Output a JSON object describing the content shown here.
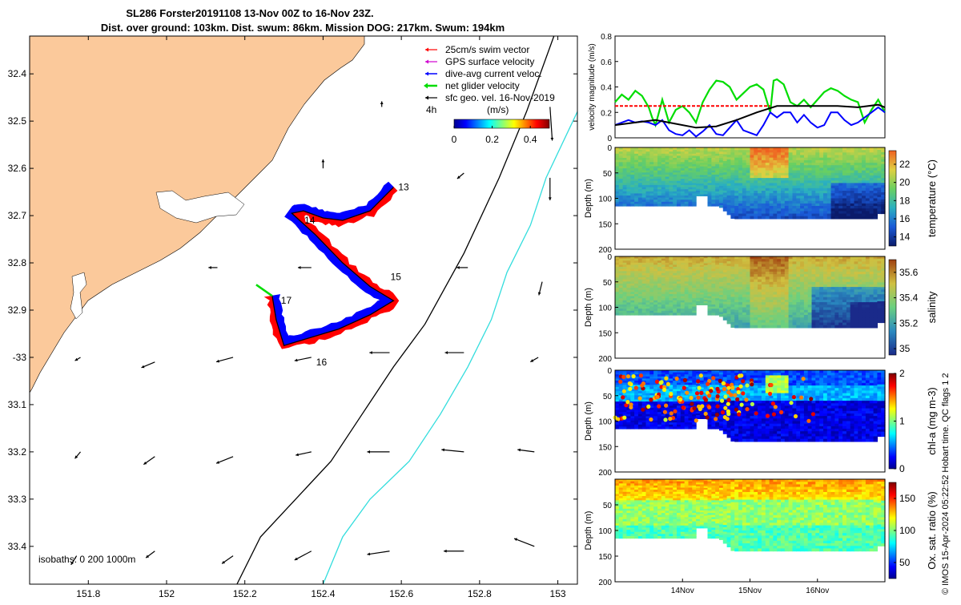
{
  "header": {
    "title_line1": "SL286 Forster20191108 13-Nov 00Z to 16-Nov 23Z.",
    "title_line2": "Dist. over ground: 103km. Dist. swum: 86km. Mission DOG: 217km. Swum: 194km"
  },
  "footer_side": "© IMOS 15-Apr-2024 05:22:52 Hobart time. QC flags 1  2",
  "colors": {
    "land": "#fbc99b",
    "swim": "#ff0000",
    "gps": "#d000d0",
    "current": "#0000ff",
    "net": "#00dd00",
    "geo": "#000000",
    "isobath_200": "#000000",
    "isobath_1000": "#33dddd"
  },
  "chart_data": [
    {
      "type": "map",
      "xlim": [
        151.65,
        153.05
      ],
      "ylim": [
        -33.48,
        -32.32
      ],
      "x_ticks": [
        151.8,
        152,
        152.2,
        152.4,
        152.6,
        152.8,
        153
      ],
      "y_ticks": [
        -32.4,
        -32.5,
        -32.6,
        -32.7,
        -32.8,
        -32.9,
        -33,
        -33.1,
        -33.2,
        -33.3,
        -33.4
      ],
      "x_tick_labels": [
        "151.8",
        "152",
        "152.2",
        "152.4",
        "152.6",
        "152.8",
        "153"
      ],
      "y_tick_labels": [
        "32.4",
        "32.5",
        "32.6",
        "32.7",
        "32.8",
        "32.9",
        "-33",
        "33.1",
        "33.2",
        "33.3",
        "33.4"
      ],
      "legend": {
        "placement": "top-right",
        "entries": [
          "25cm/s swim vector",
          "GPS surface velocity",
          "dive-avg current veloc.",
          "net glider velocity",
          "sfc geo. vel. 16-Nov-2019"
        ]
      },
      "colorbar": {
        "label": "(m/s)",
        "range": [
          0,
          0.5
        ],
        "ticks": [
          0,
          0.2,
          0.4
        ],
        "tick_labels": [
          "0",
          "0.2",
          "0.4"
        ]
      },
      "time_label": "4h",
      "isobaths_label": "isobaths: 0   200  1000m",
      "track_labels": [
        {
          "text": "13",
          "lon": 152.58,
          "lat": -32.64
        },
        {
          "text": "14",
          "lon": 152.34,
          "lat": -32.71
        },
        {
          "text": "15",
          "lon": 152.56,
          "lat": -32.83
        },
        {
          "text": "16",
          "lon": 152.37,
          "lat": -33.01
        },
        {
          "text": "17",
          "lon": 152.28,
          "lat": -32.88
        }
      ],
      "track": [
        [
          152.58,
          -32.64
        ],
        [
          152.52,
          -32.69
        ],
        [
          152.45,
          -32.71
        ],
        [
          152.4,
          -32.705
        ],
        [
          152.35,
          -32.69
        ],
        [
          152.32,
          -32.695
        ],
        [
          152.38,
          -32.74
        ],
        [
          152.45,
          -32.8
        ],
        [
          152.52,
          -32.85
        ],
        [
          152.58,
          -32.88
        ],
        [
          152.52,
          -32.91
        ],
        [
          152.44,
          -32.94
        ],
        [
          152.36,
          -32.96
        ],
        [
          152.3,
          -32.975
        ],
        [
          152.28,
          -32.92
        ],
        [
          152.27,
          -32.87
        ]
      ],
      "isobath_200": [
        [
          152.99,
          -32.32
        ],
        [
          152.92,
          -32.48
        ],
        [
          152.85,
          -32.62
        ],
        [
          152.76,
          -32.78
        ],
        [
          152.66,
          -32.93
        ],
        [
          152.58,
          -33.02
        ],
        [
          152.5,
          -33.12
        ],
        [
          152.42,
          -33.22
        ],
        [
          152.33,
          -33.3
        ],
        [
          152.24,
          -33.38
        ],
        [
          152.18,
          -33.48
        ]
      ],
      "isobath_1000": [
        [
          153.05,
          -32.48
        ],
        [
          152.97,
          -32.62
        ],
        [
          152.93,
          -32.72
        ],
        [
          152.87,
          -32.82
        ],
        [
          152.83,
          -32.92
        ],
        [
          152.77,
          -33.02
        ],
        [
          152.7,
          -33.12
        ],
        [
          152.62,
          -33.22
        ],
        [
          152.52,
          -33.3
        ],
        [
          152.45,
          -33.38
        ],
        [
          152.4,
          -33.48
        ]
      ],
      "geo_vectors": [
        {
          "lon": 152.55,
          "lat": -32.47,
          "u": 0.0,
          "v": 0.05
        },
        {
          "lon": 152.98,
          "lat": -32.47,
          "u": 0.02,
          "v": -0.3
        },
        {
          "lon": 152.4,
          "lat": -32.6,
          "u": 0.0,
          "v": 0.08
        },
        {
          "lon": 152.76,
          "lat": -32.61,
          "u": -0.06,
          "v": -0.05
        },
        {
          "lon": 152.98,
          "lat": -32.62,
          "u": 0.0,
          "v": -0.2
        },
        {
          "lon": 152.13,
          "lat": -32.81,
          "u": -0.08,
          "v": 0.0
        },
        {
          "lon": 152.37,
          "lat": -32.81,
          "u": -0.12,
          "v": 0.0
        },
        {
          "lon": 152.77,
          "lat": -32.81,
          "u": -0.1,
          "v": 0.0
        },
        {
          "lon": 152.96,
          "lat": -32.84,
          "u": -0.03,
          "v": -0.12
        },
        {
          "lon": 151.78,
          "lat": -33.0,
          "u": -0.05,
          "v": -0.03
        },
        {
          "lon": 151.97,
          "lat": -33.01,
          "u": -0.12,
          "v": -0.05
        },
        {
          "lon": 152.17,
          "lat": -33.0,
          "u": -0.15,
          "v": -0.04
        },
        {
          "lon": 152.37,
          "lat": -33.0,
          "u": -0.15,
          "v": -0.03
        },
        {
          "lon": 152.57,
          "lat": -32.99,
          "u": -0.18,
          "v": 0.0
        },
        {
          "lon": 152.76,
          "lat": -32.99,
          "u": -0.17,
          "v": 0.0
        },
        {
          "lon": 152.95,
          "lat": -33.0,
          "u": -0.07,
          "v": -0.04
        },
        {
          "lon": 151.78,
          "lat": -33.2,
          "u": -0.05,
          "v": -0.06
        },
        {
          "lon": 151.97,
          "lat": -33.21,
          "u": -0.1,
          "v": -0.07
        },
        {
          "lon": 152.17,
          "lat": -33.21,
          "u": -0.15,
          "v": -0.06
        },
        {
          "lon": 152.37,
          "lat": -33.2,
          "u": -0.14,
          "v": -0.03
        },
        {
          "lon": 152.57,
          "lat": -33.2,
          "u": -0.2,
          "v": 0.0
        },
        {
          "lon": 152.76,
          "lat": -33.2,
          "u": -0.2,
          "v": 0.02
        },
        {
          "lon": 152.94,
          "lat": -33.2,
          "u": -0.15,
          "v": 0.02
        },
        {
          "lon": 151.77,
          "lat": -33.42,
          "u": -0.05,
          "v": -0.08
        },
        {
          "lon": 151.97,
          "lat": -33.41,
          "u": -0.08,
          "v": -0.06
        },
        {
          "lon": 152.17,
          "lat": -33.42,
          "u": -0.1,
          "v": -0.07
        },
        {
          "lon": 152.37,
          "lat": -33.41,
          "u": -0.15,
          "v": -0.08
        },
        {
          "lon": 152.57,
          "lat": -33.41,
          "u": -0.2,
          "v": -0.03
        },
        {
          "lon": 152.76,
          "lat": -33.41,
          "u": -0.18,
          "v": 0.0
        },
        {
          "lon": 152.94,
          "lat": -33.4,
          "u": -0.18,
          "v": 0.07
        }
      ]
    },
    {
      "type": "line",
      "ylabel": "velocity magnitude (m/s)",
      "xlim": [
        13.0,
        17.0
      ],
      "ylim": [
        0,
        0.8
      ],
      "y_ticks": [
        0,
        0.2,
        0.4,
        0.6,
        0.8
      ],
      "y_tick_labels": [
        "0",
        "0.2",
        "0.4",
        "0.6",
        "0.8"
      ],
      "series": [
        {
          "name": "net glider velocity",
          "color": "#00dd00",
          "x": [
            13.0,
            13.1,
            13.2,
            13.3,
            13.4,
            13.5,
            13.55,
            13.6,
            13.65,
            13.7,
            13.8,
            13.9,
            14.0,
            14.1,
            14.2,
            14.3,
            14.4,
            14.5,
            14.6,
            14.7,
            14.8,
            14.9,
            15.0,
            15.1,
            15.2,
            15.3,
            15.35,
            15.4,
            15.5,
            15.6,
            15.7,
            15.8,
            15.9,
            16.0,
            16.1,
            16.2,
            16.3,
            16.4,
            16.5,
            16.6,
            16.7,
            16.8,
            16.9,
            17.0
          ],
          "y": [
            0.28,
            0.34,
            0.3,
            0.37,
            0.33,
            0.24,
            0.16,
            0.1,
            0.2,
            0.3,
            0.12,
            0.22,
            0.25,
            0.2,
            0.12,
            0.28,
            0.38,
            0.45,
            0.44,
            0.4,
            0.3,
            0.35,
            0.4,
            0.42,
            0.38,
            0.2,
            0.45,
            0.46,
            0.42,
            0.28,
            0.25,
            0.3,
            0.24,
            0.3,
            0.36,
            0.39,
            0.37,
            0.33,
            0.3,
            0.28,
            0.12,
            0.22,
            0.3,
            0.2
          ]
        },
        {
          "name": "dive-avg current veloc.",
          "color": "#0000ff",
          "x": [
            13.0,
            13.1,
            13.2,
            13.3,
            13.4,
            13.5,
            13.6,
            13.7,
            13.8,
            13.9,
            14.0,
            14.1,
            14.2,
            14.3,
            14.4,
            14.5,
            14.6,
            14.7,
            14.8,
            14.9,
            15.0,
            15.1,
            15.2,
            15.3,
            15.4,
            15.5,
            15.6,
            15.7,
            15.8,
            15.9,
            16.0,
            16.1,
            16.2,
            16.3,
            16.4,
            16.5,
            16.6,
            16.7,
            16.8,
            16.9,
            17.0
          ],
          "y": [
            0.1,
            0.12,
            0.14,
            0.12,
            0.13,
            0.12,
            0.1,
            0.14,
            0.06,
            0.03,
            0.02,
            0.06,
            0.01,
            0.05,
            0.1,
            0.03,
            0.02,
            0.08,
            0.14,
            0.06,
            0.04,
            0.02,
            0.1,
            0.2,
            0.16,
            0.2,
            0.2,
            0.12,
            0.18,
            0.12,
            0.08,
            0.1,
            0.2,
            0.2,
            0.14,
            0.1,
            0.12,
            0.16,
            0.2,
            0.24,
            0.2
          ]
        },
        {
          "name": "sfc geo. vel. 16-Nov-2019",
          "color": "#000000",
          "x": [
            13.0,
            13.3,
            13.6,
            13.9,
            14.2,
            14.5,
            14.8,
            15.1,
            15.4,
            15.7,
            16.0,
            16.3,
            16.6,
            16.9,
            17.0
          ],
          "y": [
            0.1,
            0.12,
            0.14,
            0.11,
            0.08,
            0.09,
            0.14,
            0.2,
            0.25,
            0.25,
            0.25,
            0.25,
            0.24,
            0.26,
            0.24
          ]
        },
        {
          "name": "25cm/s swim vector",
          "color": "#ff0000",
          "x": [
            13.0,
            15.3
          ],
          "y": [
            0.25,
            0.25
          ]
        }
      ]
    },
    {
      "type": "heatmap",
      "ylabel": "Depth (m)",
      "colorbar_label": "temperature (°C)",
      "ylim": [
        0,
        200
      ],
      "y_ticks": [
        0,
        50,
        100,
        150,
        200
      ],
      "y_tick_labels": [
        "0",
        "50",
        "100",
        "150",
        "200"
      ],
      "colorbar_range": [
        13,
        23.5
      ],
      "colorbar_ticks": [
        14,
        16,
        18,
        20,
        22
      ],
      "colorbar_tick_labels": [
        "14",
        "16",
        "18",
        "20",
        "22"
      ]
    },
    {
      "type": "heatmap",
      "ylabel": "Depth (m)",
      "colorbar_label": "salinity",
      "ylim": [
        0,
        200
      ],
      "y_ticks": [
        0,
        50,
        100,
        150,
        200
      ],
      "y_tick_labels": [
        "0",
        "50",
        "100",
        "150",
        "200"
      ],
      "colorbar_range": [
        34.95,
        35.7
      ],
      "colorbar_ticks": [
        35,
        35.2,
        35.4,
        35.6
      ],
      "colorbar_tick_labels": [
        "35",
        "35.2",
        "35.4",
        "35.6"
      ]
    },
    {
      "type": "heatmap",
      "ylabel": "Depth (m)",
      "colorbar_label": "chl-a (mg m-3)",
      "ylim": [
        0,
        200
      ],
      "y_ticks": [
        0,
        50,
        100,
        150,
        200
      ],
      "y_tick_labels": [
        "0",
        "50",
        "100",
        "150",
        "200"
      ],
      "colorbar_range": [
        0,
        2
      ],
      "colorbar_ticks": [
        0,
        1,
        2
      ],
      "colorbar_tick_labels": [
        "0",
        "1",
        "2"
      ]
    },
    {
      "type": "heatmap",
      "ylabel": "Depth (m)",
      "colorbar_label": "Ox. sat. ratio (%)",
      "ylim": [
        0,
        200
      ],
      "y_ticks": [
        50,
        100,
        150,
        200
      ],
      "y_tick_labels": [
        "50",
        "100",
        "150",
        "200"
      ],
      "colorbar_range": [
        25,
        175
      ],
      "colorbar_ticks": [
        50,
        100,
        150
      ],
      "colorbar_tick_labels": [
        "50",
        "100",
        "150"
      ],
      "x_ticks": [
        14,
        15,
        16
      ],
      "x_tick_labels": [
        "14Nov",
        "15Nov",
        "16Nov"
      ]
    }
  ]
}
